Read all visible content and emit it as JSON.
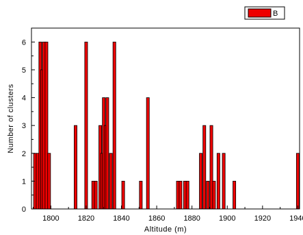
{
  "chart_data": {
    "type": "bar",
    "xlabel": "Altitude (m)",
    "ylabel": "Number of clusters",
    "xlim": [
      1789,
      1941
    ],
    "ylim": [
      0,
      6.5
    ],
    "xticks": [
      1800,
      1820,
      1840,
      1860,
      1880,
      1900,
      1920,
      1940
    ],
    "yticks": [
      0,
      1,
      2,
      3,
      4,
      5,
      6
    ],
    "grid": false,
    "legend_position": "top-right",
    "bar_width": 1.6,
    "series": [
      {
        "name": "B",
        "color": "#ee0000",
        "points": [
          {
            "x": 1791,
            "y": 2
          },
          {
            "x": 1792.5,
            "y": 2
          },
          {
            "x": 1794,
            "y": 6
          },
          {
            "x": 1795,
            "y": 5
          },
          {
            "x": 1796,
            "y": 6
          },
          {
            "x": 1797.5,
            "y": 6
          },
          {
            "x": 1799,
            "y": 2
          },
          {
            "x": 1814,
            "y": 3
          },
          {
            "x": 1820,
            "y": 6
          },
          {
            "x": 1824,
            "y": 1
          },
          {
            "x": 1825.5,
            "y": 1
          },
          {
            "x": 1828,
            "y": 3
          },
          {
            "x": 1829,
            "y": 2
          },
          {
            "x": 1830,
            "y": 4
          },
          {
            "x": 1831,
            "y": 3
          },
          {
            "x": 1832,
            "y": 4
          },
          {
            "x": 1834,
            "y": 2
          },
          {
            "x": 1836,
            "y": 6
          },
          {
            "x": 1841,
            "y": 1
          },
          {
            "x": 1851,
            "y": 1
          },
          {
            "x": 1855,
            "y": 4
          },
          {
            "x": 1872,
            "y": 1
          },
          {
            "x": 1873.5,
            "y": 1
          },
          {
            "x": 1876,
            "y": 1
          },
          {
            "x": 1877.5,
            "y": 1
          },
          {
            "x": 1885,
            "y": 2
          },
          {
            "x": 1887,
            "y": 3
          },
          {
            "x": 1889,
            "y": 1
          },
          {
            "x": 1891,
            "y": 3
          },
          {
            "x": 1892.5,
            "y": 1
          },
          {
            "x": 1895,
            "y": 2
          },
          {
            "x": 1898,
            "y": 2
          },
          {
            "x": 1904,
            "y": 1
          },
          {
            "x": 1940,
            "y": 2
          }
        ]
      }
    ]
  }
}
